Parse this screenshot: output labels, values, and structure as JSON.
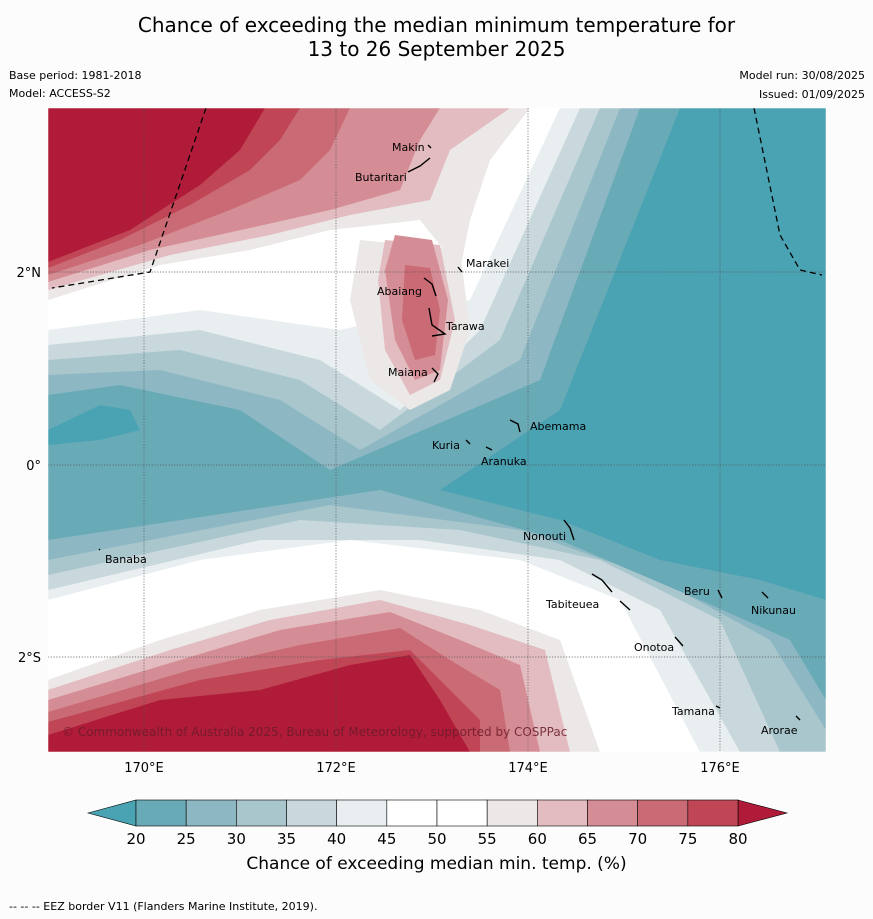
{
  "title_line1": "Chance of exceeding the median minimum temperature for",
  "title_line2": "13 to 26 September 2025",
  "base_period": "Base period: 1981-2018",
  "model": "Model: ACCESS-S2",
  "model_run": "Model run: 30/08/2025",
  "issued": "Issued: 01/09/2025",
  "copyright": "© Commonwealth of Australia 2025, Bureau of Meteorology, supported by COSPPac",
  "lon_ticks": [
    "170°E",
    "172°E",
    "174°E",
    "176°E"
  ],
  "lat_ticks": [
    "2°N",
    "0°",
    "2°S"
  ],
  "places": [
    {
      "name": "Makin"
    },
    {
      "name": "Butaritari"
    },
    {
      "name": "Marakei"
    },
    {
      "name": "Abaiang"
    },
    {
      "name": "Tarawa"
    },
    {
      "name": "Maiana"
    },
    {
      "name": "Abemama"
    },
    {
      "name": "Kuria"
    },
    {
      "name": "Aranuka"
    },
    {
      "name": "Nonouti"
    },
    {
      "name": "Banaba"
    },
    {
      "name": "Tabiteuea"
    },
    {
      "name": "Beru"
    },
    {
      "name": "Nikunau"
    },
    {
      "name": "Onotoa"
    },
    {
      "name": "Tamana"
    },
    {
      "name": "Arorae"
    }
  ],
  "colorbar": {
    "labels": [
      "20",
      "25",
      "30",
      "35",
      "40",
      "45",
      "50",
      "55",
      "60",
      "65",
      "70",
      "75",
      "80"
    ],
    "colors": [
      "#69aab7",
      "#8db8c3",
      "#a8c6cc",
      "#c9d8dc",
      "#e9eff1",
      "#ffffff",
      "#ffffff",
      "#ebe8e7",
      "#e2bcc0",
      "#d58d95",
      "#c96a74",
      "#c04656"
    ],
    "low_color": "#4aa3b3",
    "high_color": "#b01b39",
    "title": "Chance of exceeding median min. temp. (%)"
  },
  "footer": "--  --  -- EEZ border V11 (Flanders Marine Institute, 2019)."
}
